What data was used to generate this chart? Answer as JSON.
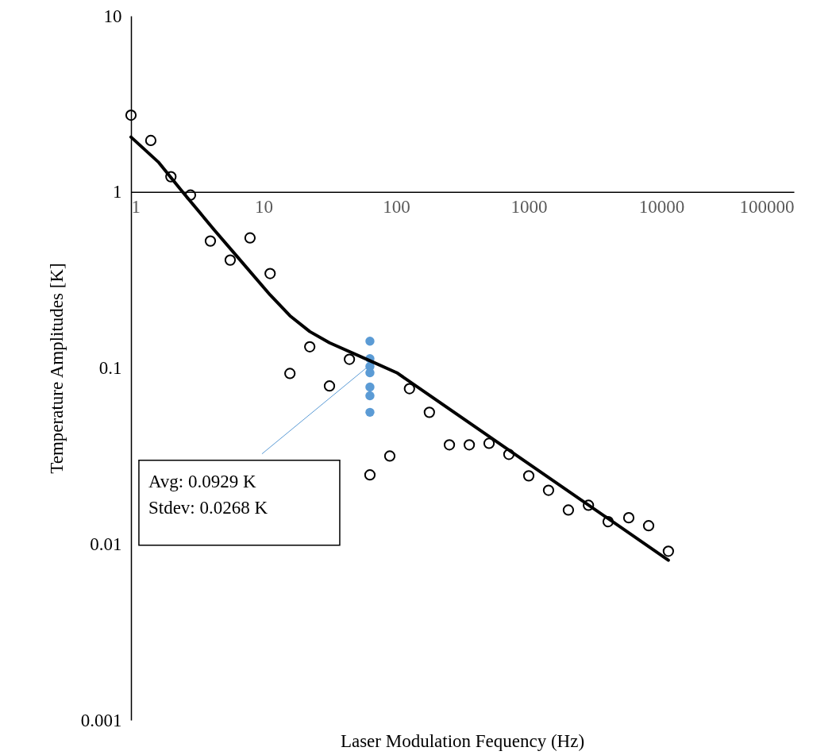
{
  "chart_data": {
    "type": "scatter",
    "xlabel": "Laser Modulation Fequency (Hz)",
    "ylabel": "Temperature Amplitudes [K]",
    "log": "xy",
    "xlim": [
      1,
      100000
    ],
    "ylim": [
      0.001,
      10
    ],
    "xticks": [
      1,
      10,
      100,
      1000,
      10000,
      100000
    ],
    "yticks": [
      0.001,
      0.01,
      0.1,
      1,
      10
    ],
    "grid": false,
    "series": [
      {
        "color": "#000000",
        "x": [
          1,
          1.41,
          2.0,
          2.81,
          3.97,
          5.6,
          7.9,
          11.2,
          15.8,
          22.3,
          31.4,
          44.4,
          63.4,
          89.5,
          126,
          178,
          252,
          356,
          502,
          708,
          1000,
          1410,
          1990,
          2820,
          3970,
          5680,
          8020,
          11300
        ],
        "values": [
          2.73,
          1.96,
          1.22,
          0.96,
          0.526,
          0.41,
          0.548,
          0.344,
          0.093,
          0.132,
          0.079,
          0.112,
          0.0247,
          0.0316,
          0.0763,
          0.056,
          0.0366,
          0.0366,
          0.0373,
          0.0323,
          0.0244,
          0.0202,
          0.0156,
          0.0166,
          0.0134,
          0.0141,
          0.0127,
          0.0091
        ]
      },
      {
        "color": "#5b9bd5",
        "x": [
          63.4,
          63.4,
          63.4,
          63.4,
          63.4,
          63.4,
          63.4
        ],
        "values": [
          0.142,
          0.113,
          0.102,
          0.094,
          0.078,
          0.0695,
          0.056
        ]
      },
      {
        "type": "line",
        "color": "#000000",
        "x": [
          1,
          1.62,
          2.45,
          4.25,
          6.43,
          11.2,
          15.8,
          22.3,
          31.4,
          63.4,
          101,
          11300
        ],
        "values": [
          2.05,
          1.47,
          1.0,
          0.608,
          0.423,
          0.26,
          0.198,
          0.161,
          0.139,
          0.11,
          0.094,
          0.0081
        ]
      }
    ],
    "annotations": [
      {
        "text": "Avg: 0.0929 K\nStdev: 0.0268 K",
        "x": 63.4,
        "y": 0.104
      }
    ]
  }
}
